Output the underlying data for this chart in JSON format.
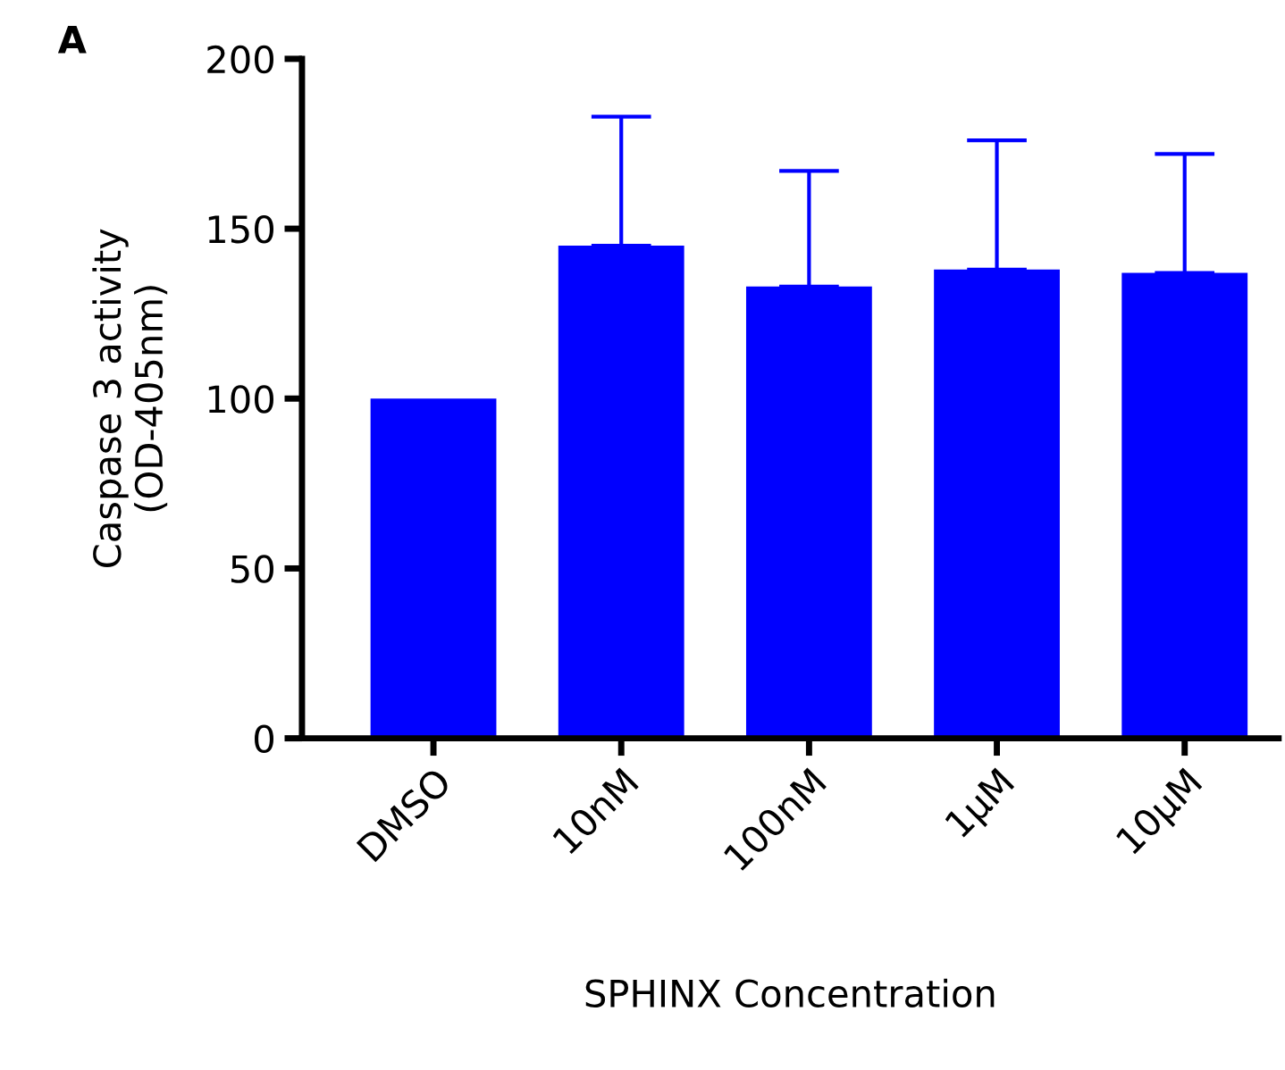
{
  "chart_data": {
    "type": "bar",
    "categories": [
      "DMSO",
      "10nM",
      "100nM",
      "1µM",
      "10µM"
    ],
    "values": [
      100,
      145,
      133,
      138,
      137
    ],
    "errors": [
      null,
      [
        145,
        183
      ],
      [
        133,
        167
      ],
      [
        138,
        176
      ],
      [
        137,
        172
      ]
    ],
    "color": "#0000ff",
    "xlabel": "SPHINX Concentration",
    "ylabel": "Caspase 3 activity\n(OD-405nm)",
    "annotations": [
      "A"
    ],
    "ylim": [
      0,
      200
    ],
    "yticks": [
      0,
      50,
      100,
      150,
      200
    ],
    "grid": false,
    "legend": false
  }
}
